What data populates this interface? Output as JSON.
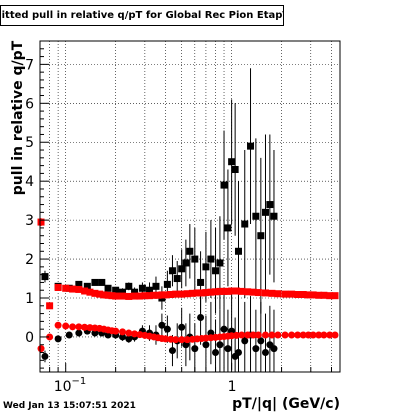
{
  "stamp": "Wed Jan 13 15:07:51 2021",
  "chart_data": {
    "type": "scatter",
    "title": "Fitted pull in relative q/pT for Global Rec Pion EtapT",
    "xlabel": "pT/|q| (GeV/c)",
    "ylabel": "pull in relative q/pT",
    "xscale": "log",
    "xlim": [
      0.07,
      4.5
    ],
    "ylim": [
      -0.9,
      7.6
    ],
    "grid": true,
    "x_tick_labels": [
      "10^-1",
      "1"
    ],
    "y_tick_labels": [
      "0",
      "1",
      "2",
      "3",
      "4",
      "5",
      "6",
      "7"
    ],
    "series": [
      {
        "marker": "square",
        "color": "#000000",
        "x": [
          0.075,
          0.09,
          0.105,
          0.12,
          0.135,
          0.15,
          0.165,
          0.18,
          0.2,
          0.22,
          0.24,
          0.26,
          0.29,
          0.32,
          0.35,
          0.38,
          0.41,
          0.44,
          0.47,
          0.5,
          0.53,
          0.56,
          0.6,
          0.65,
          0.7,
          0.75,
          0.8,
          0.85,
          0.9,
          0.95,
          1.0,
          1.05,
          1.1,
          1.2,
          1.3,
          1.4,
          1.5,
          1.6,
          1.7,
          1.8
        ],
        "y": [
          1.55,
          1.3,
          1.25,
          1.35,
          1.3,
          1.4,
          1.4,
          1.25,
          1.2,
          1.15,
          1.3,
          1.15,
          1.25,
          1.2,
          1.3,
          1.0,
          1.35,
          1.7,
          1.5,
          1.75,
          1.9,
          2.2,
          2.0,
          1.4,
          1.8,
          2.0,
          1.7,
          1.9,
          3.9,
          2.8,
          4.5,
          4.3,
          2.2,
          2.9,
          4.9,
          3.1,
          2.6,
          3.2,
          3.4,
          3.1
        ],
        "yerr": [
          0.15,
          0.08,
          0.06,
          0.06,
          0.06,
          0.06,
          0.07,
          0.07,
          0.08,
          0.1,
          0.1,
          0.12,
          0.15,
          0.2,
          0.25,
          0.3,
          0.35,
          0.4,
          0.45,
          0.5,
          0.6,
          0.7,
          0.8,
          0.8,
          0.9,
          1.0,
          1.1,
          1.2,
          1.4,
          1.5,
          1.6,
          1.7,
          1.8,
          1.9,
          2.0,
          2.0,
          2.0,
          2.0,
          1.8,
          1.7
        ]
      },
      {
        "marker": "circle",
        "color": "#000000",
        "x": [
          0.075,
          0.09,
          0.105,
          0.12,
          0.135,
          0.15,
          0.165,
          0.18,
          0.2,
          0.22,
          0.24,
          0.26,
          0.29,
          0.32,
          0.35,
          0.38,
          0.41,
          0.44,
          0.47,
          0.5,
          0.53,
          0.56,
          0.6,
          0.65,
          0.7,
          0.75,
          0.8,
          0.85,
          0.9,
          0.95,
          1.0,
          1.05,
          1.1,
          1.2,
          1.3,
          1.4,
          1.5,
          1.6,
          1.7,
          1.8
        ],
        "y": [
          -0.5,
          -0.05,
          0.05,
          0.1,
          0.15,
          0.1,
          0.1,
          0.05,
          0.05,
          0.0,
          -0.05,
          0.0,
          0.15,
          0.1,
          0.05,
          0.3,
          0.2,
          -0.35,
          -0.1,
          0.25,
          -0.2,
          0.0,
          -0.3,
          0.5,
          -0.2,
          0.1,
          -0.4,
          -0.2,
          0.2,
          -0.3,
          0.15,
          -0.5,
          -0.4,
          -0.1,
          0.05,
          -0.3,
          -0.1,
          -0.4,
          -0.2,
          -0.3
        ],
        "yerr": [
          0.15,
          0.08,
          0.06,
          0.06,
          0.06,
          0.06,
          0.07,
          0.07,
          0.08,
          0.1,
          0.1,
          0.12,
          0.15,
          0.2,
          0.25,
          0.3,
          0.35,
          0.4,
          0.45,
          0.5,
          0.55,
          0.6,
          0.65,
          0.7,
          0.75,
          0.8,
          0.85,
          0.9,
          1.0,
          1.0,
          1.0,
          1.0,
          1.0,
          1.0,
          1.0,
          1.0,
          1.0,
          1.0,
          1.0,
          1.0
        ]
      },
      {
        "marker": "square",
        "color": "#ff0000",
        "x": [
          0.071,
          0.08,
          0.09,
          0.1,
          0.11,
          0.12,
          0.13,
          0.14,
          0.15,
          0.16,
          0.17,
          0.18,
          0.19,
          0.2,
          0.22,
          0.24,
          0.26,
          0.28,
          0.3,
          0.32,
          0.34,
          0.36,
          0.38,
          0.4,
          0.43,
          0.46,
          0.5,
          0.54,
          0.58,
          0.62,
          0.66,
          0.7,
          0.75,
          0.8,
          0.85,
          0.9,
          0.95,
          1.0,
          1.07,
          1.15,
          1.25,
          1.35,
          1.45,
          1.6,
          1.75,
          1.9,
          2.1,
          2.3,
          2.5,
          2.7,
          2.9,
          3.1,
          3.35,
          3.6,
          3.9,
          4.2
        ],
        "y": [
          2.95,
          0.8,
          1.27,
          1.25,
          1.23,
          1.22,
          1.18,
          1.15,
          1.12,
          1.1,
          1.08,
          1.07,
          1.06,
          1.05,
          1.05,
          1.04,
          1.05,
          1.05,
          1.06,
          1.06,
          1.07,
          1.07,
          1.08,
          1.08,
          1.09,
          1.1,
          1.1,
          1.11,
          1.12,
          1.13,
          1.13,
          1.14,
          1.15,
          1.16,
          1.17,
          1.17,
          1.17,
          1.18,
          1.18,
          1.17,
          1.16,
          1.15,
          1.14,
          1.13,
          1.12,
          1.11,
          1.1,
          1.1,
          1.09,
          1.09,
          1.08,
          1.08,
          1.07,
          1.07,
          1.06,
          1.06
        ],
        "yerr": [
          0.1,
          0.08,
          0.05,
          0.04,
          0.03,
          0.03,
          0.03,
          0.03,
          0.03,
          0.03,
          0.02,
          0.02,
          0.02,
          0.02,
          0.02,
          0.02,
          0.02,
          0.02,
          0.02,
          0.02,
          0.02,
          0.02,
          0.02,
          0.02,
          0.02,
          0.02,
          0.02,
          0.02,
          0.02,
          0.02,
          0.02,
          0.02,
          0.02,
          0.02,
          0.02,
          0.02,
          0.02,
          0.02,
          0.02,
          0.02,
          0.02,
          0.02,
          0.02,
          0.02,
          0.02,
          0.02,
          0.02,
          0.02,
          0.02,
          0.02,
          0.02,
          0.02,
          0.02,
          0.02,
          0.02,
          0.02
        ]
      },
      {
        "marker": "circle",
        "color": "#ff0000",
        "x": [
          0.071,
          0.08,
          0.09,
          0.1,
          0.11,
          0.12,
          0.13,
          0.14,
          0.15,
          0.16,
          0.17,
          0.18,
          0.19,
          0.2,
          0.22,
          0.24,
          0.26,
          0.28,
          0.3,
          0.32,
          0.34,
          0.36,
          0.38,
          0.4,
          0.43,
          0.46,
          0.5,
          0.54,
          0.58,
          0.62,
          0.66,
          0.7,
          0.75,
          0.8,
          0.85,
          0.9,
          0.95,
          1.0,
          1.07,
          1.15,
          1.25,
          1.35,
          1.45,
          1.6,
          1.75,
          1.9,
          2.1,
          2.3,
          2.5,
          2.7,
          2.9,
          3.1,
          3.35,
          3.6,
          3.9,
          4.2
        ],
        "y": [
          -0.3,
          0.0,
          0.3,
          0.28,
          0.26,
          0.26,
          0.25,
          0.24,
          0.23,
          0.22,
          0.2,
          0.18,
          0.16,
          0.15,
          0.13,
          0.1,
          0.08,
          0.06,
          0.04,
          0.02,
          0.0,
          -0.02,
          -0.04,
          -0.05,
          -0.06,
          -0.07,
          -0.07,
          -0.07,
          -0.06,
          -0.05,
          -0.04,
          -0.03,
          -0.02,
          -0.01,
          0.0,
          0.01,
          0.02,
          0.03,
          0.04,
          0.05,
          0.05,
          0.05,
          0.05,
          0.05,
          0.05,
          0.05,
          0.05,
          0.05,
          0.05,
          0.05,
          0.05,
          0.05,
          0.05,
          0.05,
          0.05,
          0.05
        ],
        "yerr": [
          0.08,
          0.06,
          0.04,
          0.03,
          0.03,
          0.03,
          0.03,
          0.02,
          0.02,
          0.02,
          0.02,
          0.02,
          0.02,
          0.02,
          0.02,
          0.02,
          0.02,
          0.02,
          0.02,
          0.02,
          0.02,
          0.02,
          0.02,
          0.02,
          0.02,
          0.02,
          0.02,
          0.02,
          0.02,
          0.02,
          0.02,
          0.02,
          0.02,
          0.02,
          0.02,
          0.02,
          0.02,
          0.02,
          0.02,
          0.02,
          0.02,
          0.02,
          0.02,
          0.02,
          0.02,
          0.02,
          0.02,
          0.02,
          0.02,
          0.02,
          0.02,
          0.02,
          0.02,
          0.02,
          0.02,
          0.02
        ]
      }
    ]
  }
}
